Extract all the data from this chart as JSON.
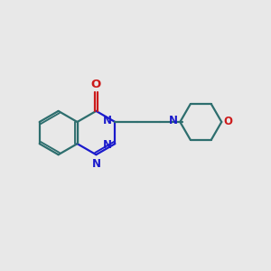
{
  "bg_color": "#e8e8e8",
  "bond_color": "#2d6e6e",
  "N_color": "#1a1acc",
  "O_color": "#cc1a1a",
  "font_size": 8.5,
  "bond_width": 1.6,
  "figsize": [
    3.0,
    3.0
  ],
  "dpi": 100,
  "xlim": [
    0,
    10
  ],
  "ylim": [
    0,
    10
  ]
}
